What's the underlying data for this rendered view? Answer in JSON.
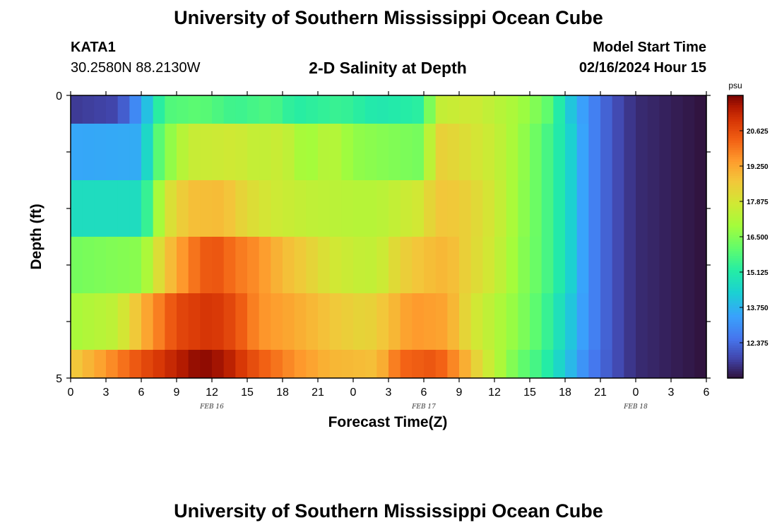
{
  "header": {
    "title": "University of Southern Mississippi Ocean Cube",
    "station_id": "KATA1",
    "coordinates": "30.2580N  88.2130W",
    "subtitle": "2-D Salinity at Depth",
    "model_start_label": "Model Start Time",
    "model_start_value": "02/16/2024 Hour 15"
  },
  "footer": {
    "title": "University of Southern Mississippi Ocean Cube"
  },
  "chart_data": {
    "type": "heatmap",
    "xlabel": "Forecast Time(Z)",
    "ylabel": "Depth (ft)",
    "x_tick_labels": [
      "0",
      "3",
      "6",
      "9",
      "12",
      "15",
      "18",
      "21",
      "0",
      "3",
      "6",
      "9",
      "12",
      "15",
      "18",
      "21",
      "0",
      "3",
      "6"
    ],
    "date_labels": [
      {
        "label": "FEB 16",
        "hour_index": 16
      },
      {
        "label": "FEB 17",
        "hour_index": 40
      },
      {
        "label": "FEB 18",
        "hour_index": 64
      }
    ],
    "x_hours_range": [
      0,
      54
    ],
    "y_tick_labels": [
      "0",
      "5"
    ],
    "ylim": [
      0,
      5
    ],
    "depth_bands_ft": [
      [
        0,
        0.5
      ],
      [
        0.5,
        1.5
      ],
      [
        1.5,
        2.5
      ],
      [
        2.5,
        3.5
      ],
      [
        3.5,
        4.5
      ],
      [
        4.5,
        5
      ]
    ],
    "colorbar": {
      "unit": "psu",
      "min": 11.0,
      "max": 22.0,
      "tick_labels": [
        "12.375",
        "13.750",
        "15.125",
        "16.500",
        "17.875",
        "19.250",
        "20.625"
      ],
      "tick_values": [
        12.375,
        13.75,
        15.125,
        16.5,
        17.875,
        19.25,
        20.625
      ]
    },
    "profiles": [
      {
        "depth_band": 0,
        "knots": [
          [
            0,
            11.6
          ],
          [
            4,
            11.8
          ],
          [
            6,
            13.3
          ],
          [
            7,
            14.7
          ],
          [
            8,
            15.8
          ],
          [
            11,
            16.0
          ],
          [
            14,
            15.5
          ],
          [
            17,
            15.8
          ],
          [
            19,
            15.2
          ],
          [
            23,
            15.5
          ],
          [
            26,
            15.0
          ],
          [
            30,
            15.3
          ],
          [
            31,
            17.5
          ],
          [
            34,
            17.8
          ],
          [
            38,
            17.0
          ],
          [
            40,
            16.3
          ],
          [
            41,
            15.8
          ],
          [
            42,
            14.5
          ],
          [
            44,
            13.0
          ],
          [
            46,
            12.0
          ],
          [
            48,
            11.4
          ],
          [
            54,
            11.0
          ]
        ]
      },
      {
        "depth_band": 1,
        "knots": [
          [
            0,
            13.5
          ],
          [
            6,
            13.6
          ],
          [
            7,
            15.5
          ],
          [
            8,
            16.4
          ],
          [
            10,
            17.6
          ],
          [
            14,
            17.8
          ],
          [
            16,
            17.5
          ],
          [
            18,
            17.7
          ],
          [
            20,
            16.8
          ],
          [
            22,
            17.4
          ],
          [
            24,
            16.7
          ],
          [
            30,
            16.3
          ],
          [
            31,
            18.5
          ],
          [
            33,
            18.2
          ],
          [
            36,
            17.6
          ],
          [
            38,
            16.9
          ],
          [
            40,
            16.0
          ],
          [
            42,
            14.8
          ],
          [
            44,
            13.0
          ],
          [
            46,
            12.0
          ],
          [
            48,
            11.4
          ],
          [
            54,
            11.0
          ]
        ]
      },
      {
        "depth_band": 2,
        "knots": [
          [
            0,
            14.7
          ],
          [
            6,
            14.7
          ],
          [
            7,
            16.2
          ],
          [
            8,
            17.8
          ],
          [
            10,
            18.8
          ],
          [
            13,
            18.9
          ],
          [
            15,
            18.2
          ],
          [
            17,
            17.8
          ],
          [
            20,
            17.5
          ],
          [
            24,
            17.3
          ],
          [
            26,
            17.3
          ],
          [
            28,
            17.6
          ],
          [
            30,
            17.9
          ],
          [
            31,
            18.7
          ],
          [
            33,
            18.6
          ],
          [
            36,
            17.8
          ],
          [
            38,
            16.8
          ],
          [
            40,
            16.0
          ],
          [
            42,
            14.8
          ],
          [
            44,
            13.0
          ],
          [
            46,
            12.0
          ],
          [
            48,
            11.4
          ],
          [
            54,
            11.0
          ]
        ]
      },
      {
        "depth_band": 3,
        "knots": [
          [
            0,
            16.3
          ],
          [
            6,
            16.6
          ],
          [
            8,
            18.6
          ],
          [
            10,
            19.8
          ],
          [
            12,
            20.6
          ],
          [
            14,
            20.0
          ],
          [
            16,
            19.6
          ],
          [
            18,
            18.9
          ],
          [
            20,
            18.5
          ],
          [
            22,
            17.9
          ],
          [
            24,
            17.6
          ],
          [
            26,
            17.5
          ],
          [
            28,
            18.4
          ],
          [
            30,
            18.8
          ],
          [
            32,
            19.0
          ],
          [
            34,
            18.3
          ],
          [
            36,
            17.7
          ],
          [
            38,
            16.7
          ],
          [
            40,
            16.0
          ],
          [
            42,
            14.8
          ],
          [
            44,
            13.0
          ],
          [
            46,
            12.0
          ],
          [
            48,
            11.4
          ],
          [
            54,
            11.0
          ]
        ]
      },
      {
        "depth_band": 4,
        "knots": [
          [
            0,
            17.0
          ],
          [
            4,
            17.5
          ],
          [
            6,
            19.0
          ],
          [
            9,
            20.7
          ],
          [
            12,
            21.1
          ],
          [
            14,
            20.6
          ],
          [
            16,
            19.6
          ],
          [
            19,
            19.2
          ],
          [
            22,
            18.7
          ],
          [
            25,
            18.3
          ],
          [
            27,
            18.8
          ],
          [
            29,
            19.5
          ],
          [
            32,
            19.3
          ],
          [
            34,
            18.0
          ],
          [
            36,
            17.3
          ],
          [
            38,
            16.6
          ],
          [
            40,
            15.8
          ],
          [
            42,
            14.5
          ],
          [
            44,
            13.0
          ],
          [
            46,
            12.0
          ],
          [
            48,
            11.4
          ],
          [
            54,
            11.0
          ]
        ]
      },
      {
        "depth_band": 5,
        "knots": [
          [
            0,
            18.5
          ],
          [
            3,
            19.5
          ],
          [
            6,
            20.6
          ],
          [
            9,
            21.4
          ],
          [
            11,
            21.9
          ],
          [
            13,
            21.6
          ],
          [
            16,
            20.4
          ],
          [
            19,
            19.6
          ],
          [
            22,
            19.0
          ],
          [
            26,
            18.8
          ],
          [
            28,
            20.2
          ],
          [
            31,
            20.5
          ],
          [
            33,
            19.5
          ],
          [
            35,
            18.0
          ],
          [
            37,
            16.8
          ],
          [
            38,
            16.2
          ],
          [
            40,
            15.5
          ],
          [
            42,
            14.2
          ],
          [
            44,
            12.8
          ],
          [
            46,
            12.0
          ],
          [
            48,
            11.4
          ],
          [
            54,
            11.0
          ]
        ]
      }
    ]
  }
}
